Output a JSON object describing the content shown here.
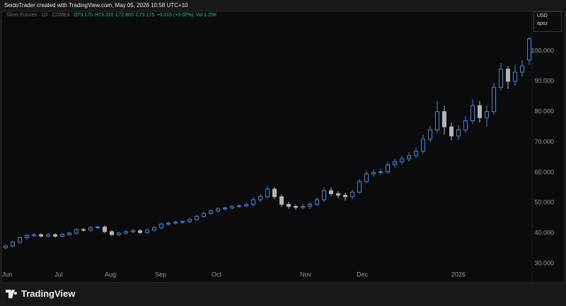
{
  "header": {
    "credit": "SeidoTrader created with TradingView.com, May 05, 2026 10:58 UTC+10",
    "brand": "TradingView"
  },
  "chart_data": {
    "type": "candlestick",
    "symbol": "Silver Futures · 1D · COMEX",
    "ohlc_text": [
      "O73.170",
      "H73.310",
      "L72.805",
      "C73.175",
      "+0.015 (+0.02%)",
      "Vol 1.25K"
    ],
    "currency": "USD",
    "scale_label": "apoz",
    "up_color": "#3b8ad0",
    "down_color": "#b4b4b4",
    "x": [
      0,
      1,
      2,
      3,
      4,
      5,
      6,
      7,
      8,
      9,
      10,
      11,
      12,
      13,
      14,
      15,
      16,
      17,
      18,
      19,
      20,
      21,
      22,
      23,
      24,
      25,
      26,
      27,
      28,
      29,
      30,
      31,
      32,
      33,
      34,
      35,
      36,
      37,
      38,
      39,
      40,
      41,
      42,
      43,
      44,
      45,
      46,
      47,
      48,
      49,
      50,
      51,
      52,
      53,
      54,
      55,
      56,
      57,
      58,
      59,
      60,
      61,
      62,
      63,
      64,
      65,
      66,
      67,
      68,
      69,
      70,
      71,
      72,
      73,
      74
    ],
    "open": [
      35.2,
      35.8,
      37,
      38.5,
      39.2,
      39.5,
      39,
      39.5,
      39,
      39.6,
      40,
      41.2,
      41,
      41.8,
      42,
      40.5,
      39.5,
      40,
      40.5,
      40.8,
      40.2,
      41,
      41.8,
      43,
      43.3,
      43.6,
      43.8,
      44.5,
      45.5,
      46.5,
      47.3,
      48,
      48.3,
      48.8,
      49,
      49.5,
      51,
      52,
      54.5,
      52,
      49.5,
      48.8,
      48.5,
      48.8,
      49.5,
      51,
      54,
      53,
      52.5,
      52,
      53.5,
      57,
      59.5,
      60,
      60.2,
      62.5,
      63.5,
      64.5,
      65.5,
      67,
      71,
      74,
      80,
      75,
      72,
      74,
      77,
      82,
      78,
      80,
      88,
      94,
      90,
      93,
      97
    ],
    "high": [
      36.3,
      37.5,
      39,
      39.7,
      40,
      40,
      40,
      40,
      40.1,
      40.5,
      41.7,
      41.7,
      42.3,
      42.5,
      42.5,
      41,
      40.5,
      41,
      41.3,
      41.3,
      41.5,
      42.3,
      43.5,
      43.8,
      44.1,
      44.3,
      45,
      46,
      47,
      47.8,
      48.5,
      48.8,
      49.3,
      49.5,
      50,
      51.8,
      53,
      55.6,
      55.2,
      52.8,
      50.3,
      49.5,
      49.6,
      50.2,
      51.8,
      55,
      55,
      53.8,
      53.3,
      54.3,
      57.8,
      60.5,
      61,
      61.2,
      63.5,
      64.5,
      65.5,
      66.6,
      68.2,
      72.4,
      75.2,
      83.5,
      82,
      76.5,
      75.5,
      78.5,
      84,
      83.5,
      82,
      89.5,
      96,
      95,
      95.5,
      97,
      104.5
    ],
    "low": [
      34.7,
      35.3,
      36.5,
      38,
      38.7,
      38.5,
      38.5,
      38.5,
      38.5,
      39.1,
      39.5,
      40.5,
      40.5,
      41.3,
      40,
      39,
      39,
      39.5,
      40,
      39.7,
      39.7,
      40.5,
      41.3,
      42.5,
      42.8,
      43.1,
      43.3,
      44,
      45,
      46,
      46.8,
      47.5,
      47.8,
      48.3,
      48.5,
      48.8,
      50.2,
      51.2,
      51.2,
      48.6,
      48,
      47.6,
      47.8,
      48,
      48.8,
      50.3,
      52.2,
      51.5,
      50.8,
      51.2,
      53,
      56.3,
      58.7,
      59.2,
      59.5,
      61.6,
      62.6,
      63.6,
      64.7,
      66.2,
      70,
      73,
      72.5,
      70.5,
      70.8,
      73,
      76,
      76.5,
      75,
      79,
      87,
      87.5,
      88.5,
      91.5,
      95.5
    ],
    "close": [
      35.8,
      37,
      38.5,
      39.2,
      39.5,
      39,
      39.5,
      39,
      39.6,
      40,
      41.2,
      41,
      41.8,
      42,
      40.5,
      39.5,
      40,
      40.5,
      40.8,
      40.2,
      41,
      41.8,
      43,
      43.3,
      43.6,
      43.8,
      44.5,
      45.5,
      46.5,
      47.3,
      48,
      48.3,
      48.8,
      49,
      49.5,
      51,
      52,
      54.5,
      52,
      49.5,
      48.8,
      48.5,
      48.8,
      49.5,
      51,
      54,
      53,
      52.5,
      52,
      53.5,
      57,
      59.5,
      60,
      60.2,
      62.5,
      63.5,
      64.5,
      65.5,
      67,
      71,
      74,
      80,
      75,
      72,
      74,
      77,
      82,
      78,
      80,
      88,
      94,
      90,
      93,
      95,
      104
    ],
    "xlim": [
      -0.5,
      74.4
    ],
    "xticks": [
      {
        "value": 0.2,
        "label": "Jun"
      },
      {
        "value": 7.5,
        "label": "Jul"
      },
      {
        "value": 14.8,
        "label": "Aug"
      },
      {
        "value": 21.9,
        "label": "Sep"
      },
      {
        "value": 29.8,
        "label": "Oct"
      },
      {
        "value": 42.4,
        "label": "Nov"
      },
      {
        "value": 50.4,
        "label": "Dec"
      },
      {
        "value": 64.0,
        "label": "2026"
      }
    ],
    "ylim": [
      28.6,
      112.8
    ],
    "yticks": [
      {
        "value": 30,
        "label": "30.000"
      },
      {
        "value": 40,
        "label": "40.000"
      },
      {
        "value": 50,
        "label": "50.000"
      },
      {
        "value": 60,
        "label": "60.000"
      },
      {
        "value": 70,
        "label": "70.000"
      },
      {
        "value": 80,
        "label": "80.000"
      },
      {
        "value": 90,
        "label": "90.000"
      },
      {
        "value": 100,
        "label": "100.000"
      }
    ]
  }
}
